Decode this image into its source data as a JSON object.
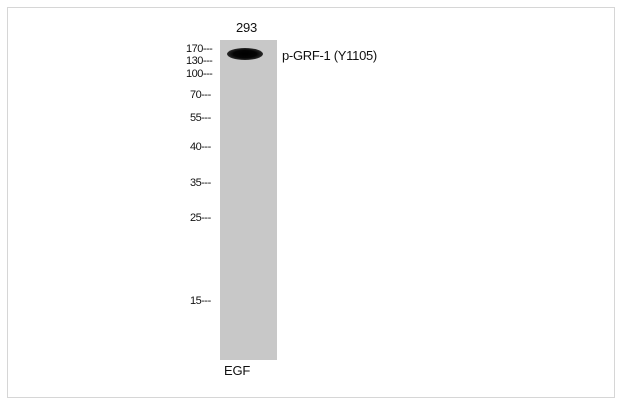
{
  "blot": {
    "lane_header": "293",
    "band_label": "p-GRF-1 (Y1105)",
    "treatment_label": "EGF",
    "markers": [
      "170",
      "130",
      "100",
      "70",
      "55",
      "40",
      "35",
      "25",
      "15"
    ],
    "marker_suffix": "---"
  }
}
